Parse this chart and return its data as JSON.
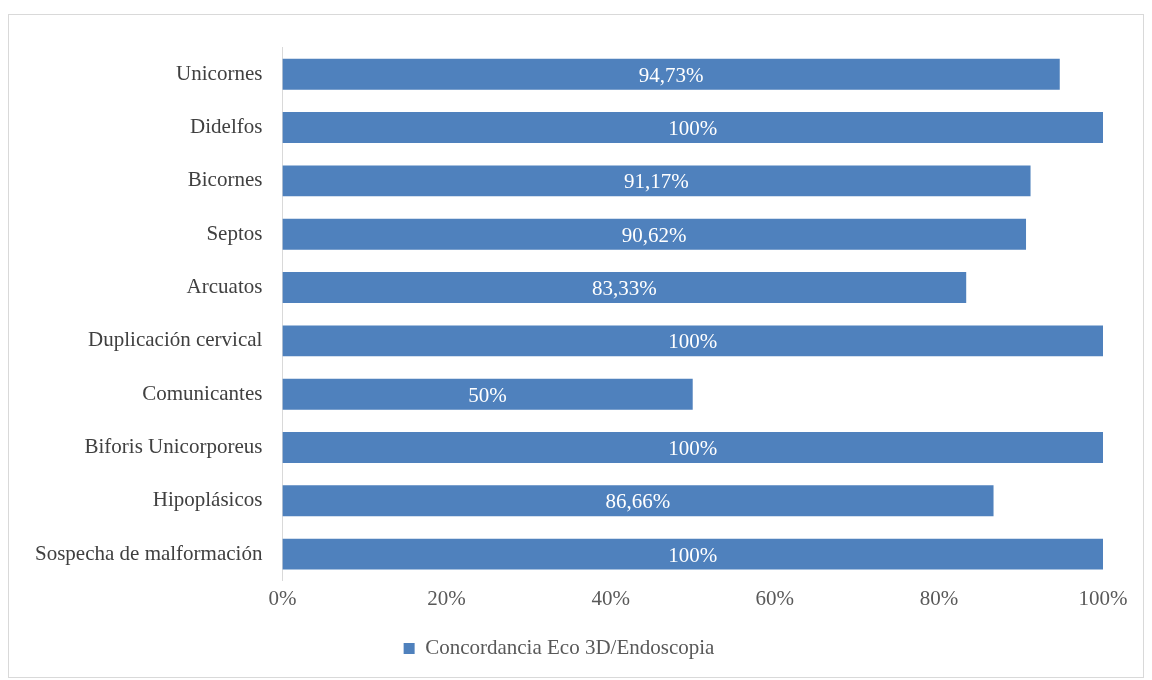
{
  "chart_data": {
    "type": "bar",
    "orientation": "horizontal",
    "categories": [
      "Unicornes",
      "Didelfos",
      "Bicornes",
      "Septos",
      "Arcuatos",
      "Duplicación cervical",
      "Comunicantes",
      "Biforis Unicorporeus",
      "Hipoplásicos",
      "Sospecha de malformación"
    ],
    "series": [
      {
        "name": "Concordancia Eco 3D/Endoscopia",
        "color": "#4f81bd",
        "values": [
          94.73,
          100,
          91.17,
          90.62,
          83.33,
          100,
          50,
          100,
          86.66,
          100
        ],
        "value_labels": [
          "94,73%",
          "100%",
          "91,17%",
          "90,62%",
          "83,33%",
          "100%",
          "50%",
          "100%",
          "86,66%",
          "100%"
        ]
      }
    ],
    "xlim": [
      0,
      100
    ],
    "xticks": [
      {
        "value": 0,
        "label": "0%"
      },
      {
        "value": 20,
        "label": "20%"
      },
      {
        "value": 40,
        "label": "40%"
      },
      {
        "value": 60,
        "label": "60%"
      },
      {
        "value": 80,
        "label": "80%"
      },
      {
        "value": 100,
        "label": "100%"
      }
    ],
    "grid": false,
    "legend": "bottom"
  }
}
